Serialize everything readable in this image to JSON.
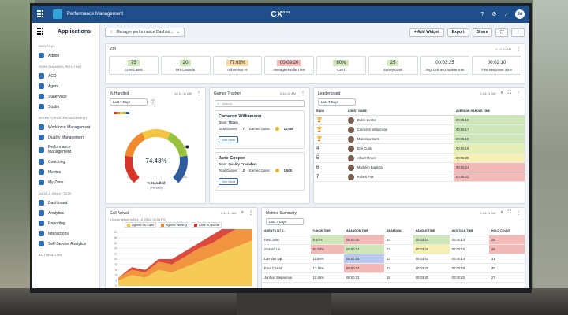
{
  "app": {
    "title": "Performance Management",
    "brand": "CX",
    "brand_sub": "one",
    "user_initials": "SA"
  },
  "sidebar": {
    "title": "Applications",
    "sections": [
      {
        "label": "GENERAL",
        "items": [
          "Admin"
        ]
      },
      {
        "label": "OMNICHANNEL ROUTING",
        "items": [
          "ACD",
          "Agent",
          "Supervisor",
          "Studio"
        ]
      },
      {
        "label": "WORKFORCE ENGAGEMENT",
        "items": [
          "Workforce Management",
          "Quality Management",
          "Performance Management",
          "Coaching",
          "Metrics",
          "My Zone"
        ]
      },
      {
        "label": "DATA & ANALYTICS",
        "items": [
          "Dashboard",
          "Analytics",
          "Reporting",
          "Interactions",
          "Self-Service Analytics"
        ]
      },
      {
        "label": "AUTOMATION",
        "items": []
      }
    ]
  },
  "toolbar": {
    "dashboard": "Manager performance Dashbo...",
    "add_widget": "+ Add Widget",
    "export": "Export",
    "share": "Share"
  },
  "kpi": {
    "title": "KPI",
    "meta": "2:44:11 AM",
    "tiles": [
      {
        "value": "75",
        "label": "CRM Cases",
        "color": "#cfe7b8"
      },
      {
        "value": "20",
        "label": "HR Contacts",
        "color": "#cfe7b8"
      },
      {
        "value": "77.69%",
        "label": "Adherence %",
        "color": "#f6d9a3"
      },
      {
        "value": "00:09:20",
        "label": "Average Handle Time",
        "color": "#f3b9b6"
      },
      {
        "value": "80%",
        "label": "CSAT",
        "color": "#cfe7b8"
      },
      {
        "value": "25",
        "label": "Survey count",
        "color": "#cfe7b8"
      },
      {
        "value": "00:03:25",
        "label": "Avg. Online complete time",
        "color": "#ffffff"
      },
      {
        "value": "00:02:10",
        "label": "First Response Time",
        "color": "#ffffff"
      }
    ]
  },
  "handled": {
    "title": "% Handled",
    "meta": "12:41:11 AM",
    "range": "Last 7 Days",
    "value": "74.43%",
    "fraction": 0.7443,
    "label": "% Handled",
    "sub": "(Percent)",
    "min": "0",
    "max": "100",
    "colors": [
      "#d7352a",
      "#f08a2c",
      "#f4c542",
      "#9ac23c",
      "#2e5c9e"
    ]
  },
  "games": {
    "title": "Games Tracker",
    "meta": "2:44:11 AM",
    "search_placeholder": "Search",
    "cards": [
      {
        "name": "Cameron Williamson",
        "team_label": "Team:",
        "team": "Titans",
        "games_label": "Total Games:",
        "games": "7",
        "coins_label": "Earned Coins:",
        "coins": "10,000",
        "more": "See More"
      },
      {
        "name": "Jane Cooper",
        "team_label": "Team:",
        "team": "Quality Crusaders",
        "games_label": "Total Games:",
        "games": "2",
        "coins_label": "Earned Coins:",
        "coins": "1,500",
        "more": "See More"
      }
    ]
  },
  "leaderboard": {
    "title": "Leaderboard",
    "meta": "2:44:11 AM",
    "range": "Last 7 Days",
    "columns": [
      "RANK",
      "AGENT NAME",
      "AVERAGE HANDLE TIME"
    ],
    "rows": [
      {
        "rank": "🏆",
        "name": "Dulce Kenter",
        "value": "00:05:16",
        "color": "#cfe7b8"
      },
      {
        "rank": "🏆",
        "name": "Cameron Williamson",
        "value": "00:05:17",
        "color": "#cfe7b8"
      },
      {
        "rank": "🏆",
        "name": "Makenna Saris",
        "value": "00:05:18",
        "color": "#cfe7b8"
      },
      {
        "rank": "4",
        "name": "Erin Curtis",
        "value": "00:05:19",
        "color": "#e4efb5"
      },
      {
        "rank": "5",
        "name": "Albert Flores",
        "value": "00:05:20",
        "color": "#f6f0b4"
      },
      {
        "rank": "6",
        "name": "Madelyn Baptista",
        "value": "00:05:21",
        "color": "#f3b9b6"
      },
      {
        "rank": "7",
        "name": "Robert Fox",
        "value": "00:05:22",
        "color": "#f3b9b6"
      }
    ]
  },
  "call_arrival": {
    "title": "Call Arrival",
    "meta": "2:44:11 AM",
    "note": "4 hours before to Dec 15, 2024, 05:04 PM",
    "legend": [
      {
        "name": "Agents on Calls",
        "color": "#f4c542"
      },
      {
        "name": "Agents Waiting",
        "color": "#f08a2c"
      },
      {
        "name": "Calls in Queue",
        "color": "#d7352a"
      }
    ],
    "y_ticks": [
      "20",
      "18",
      "16",
      "14",
      "12",
      "10",
      "8",
      "6",
      "4",
      "2",
      "0"
    ],
    "chart_data": {
      "type": "area",
      "ylim": [
        0,
        20
      ],
      "series": [
        {
          "name": "Agents on Calls",
          "values": [
            2,
            4,
            3,
            6,
            5,
            7,
            9,
            11,
            13,
            15,
            17
          ]
        },
        {
          "name": "Agents Waiting",
          "values": [
            1,
            2,
            2,
            3,
            3,
            4,
            5,
            5,
            6,
            7,
            8
          ]
        },
        {
          "name": "Calls in Queue",
          "values": [
            0,
            1,
            1,
            1,
            2,
            2,
            2,
            3,
            3,
            4,
            5
          ]
        }
      ]
    }
  },
  "metrics": {
    "title": "Metrics Summary",
    "meta": "2:44:11 AM",
    "range": "Last 7 Days",
    "columns": [
      "AGENTS (17 T...",
      "% ACW TIME",
      "ABANDON TIME",
      "ABANDON",
      "HANDLE TIME",
      "AVG TALK TIME",
      "HOLD COUNT"
    ],
    "rows": [
      {
        "cells": [
          "Ravi John",
          "9.40%",
          "00:00:20",
          "20",
          "00:03:10",
          "00:00:14",
          "25"
        ],
        "colors": [
          "",
          "#cfe7b8",
          "#f3b9b6",
          "",
          "#cfe7b8",
          "",
          "#f3b9b6"
        ]
      },
      {
        "cells": [
          "Sharon Lis",
          "81.63%",
          "00:00:14",
          "23",
          "00:03:28",
          "00:00:16",
          "29"
        ],
        "colors": [
          "",
          "#f3b9b6",
          "#cfe7b8",
          "",
          "#f6f0b4",
          "",
          "#f3b9b6"
        ]
      },
      {
        "cells": [
          "Lan Van Dijk",
          "11.58%",
          "00:00:15",
          "23",
          "00:03:42",
          "00:00:14",
          "31"
        ],
        "colors": [
          "",
          "",
          "#b9c9ef",
          "",
          "",
          "",
          ""
        ]
      },
      {
        "cells": [
          "Ema Chand",
          "13.45%",
          "00:00:24",
          "12",
          "00:03:25",
          "00:00:28",
          "30"
        ],
        "colors": [
          "",
          "",
          "#f3b9b6",
          "",
          "",
          "",
          ""
        ]
      },
      {
        "cells": [
          "Jonhua Stepanova",
          "10.45%",
          "00:00:22",
          "18",
          "00:03:30",
          "00:00:20",
          "27"
        ],
        "colors": [
          "",
          "",
          "",
          "",
          "",
          "",
          ""
        ]
      }
    ]
  }
}
